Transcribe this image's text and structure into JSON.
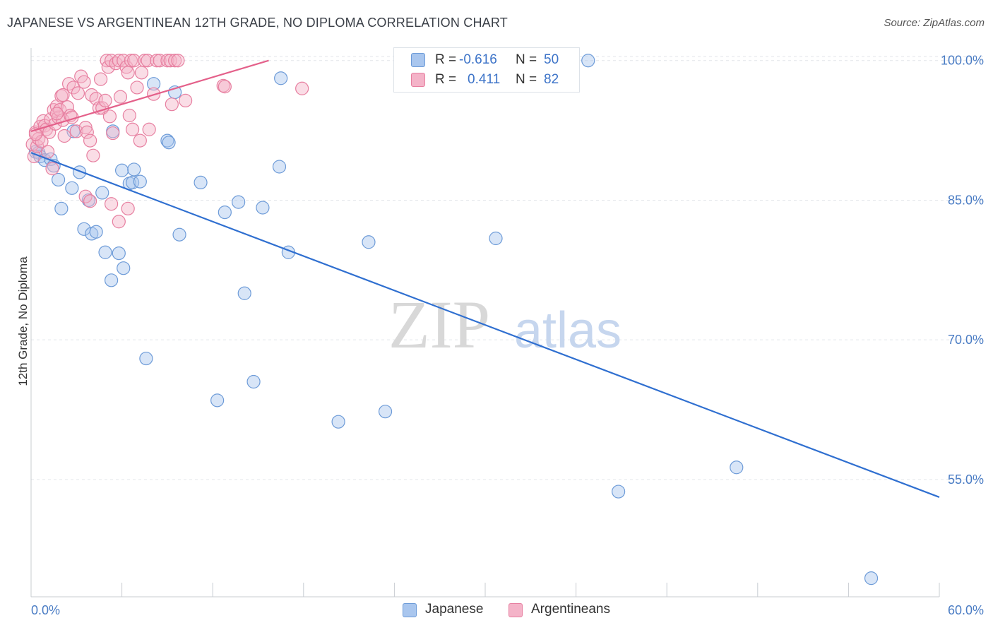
{
  "title": "JAPANESE VS ARGENTINEAN 12TH GRADE, NO DIPLOMA CORRELATION CHART",
  "source": "Source: ZipAtlas.com",
  "watermark": {
    "zip": "ZIP",
    "atlas": "atlas"
  },
  "legend": {
    "rows": [
      {
        "r_label": "R =",
        "r_value": "-0.616",
        "n_label": "N =",
        "n_value": "50",
        "color": "#a9c6ee"
      },
      {
        "r_label": "R =",
        "r_value": " 0.411",
        "n_label": "N =",
        "n_value": "82",
        "color": "#f4b3c8"
      }
    ]
  },
  "bottom_legend": [
    {
      "label": "Japanese",
      "color": "#a9c6ee"
    },
    {
      "label": "Argentineans",
      "color": "#f4b3c8"
    }
  ],
  "chart_data": {
    "type": "scatter",
    "xlabel": "",
    "ylabel": "12th Grade, No Diploma",
    "xlim": [
      0,
      60
    ],
    "ylim": [
      42.4,
      101.8
    ],
    "x_tick_labels": [
      {
        "value": 0,
        "label": "0.0%"
      },
      {
        "value": 60,
        "label": "60.0%"
      }
    ],
    "y_tick_labels": [
      {
        "value": 100,
        "label": "100.0%"
      },
      {
        "value": 85,
        "label": "85.0%"
      },
      {
        "value": 70,
        "label": "70.0%"
      },
      {
        "value": 55,
        "label": "55.0%"
      }
    ],
    "series": [
      {
        "name": "Japanese",
        "color": "#a9c6ee",
        "stroke": "#6d9bd8",
        "trend": {
          "x": [
            0,
            60
          ],
          "y": [
            90.1,
            53.1
          ],
          "color": "#2f6fd0"
        },
        "points": [
          [
            0.3,
            90.2
          ],
          [
            0.5,
            90.1
          ],
          [
            0.6,
            89.7
          ],
          [
            0.9,
            89.3
          ],
          [
            1.3,
            89.4
          ],
          [
            1.5,
            88.7
          ],
          [
            1.8,
            87.2
          ],
          [
            2.0,
            84.1
          ],
          [
            2.7,
            86.3
          ],
          [
            3.2,
            88.0
          ],
          [
            3.5,
            81.9
          ],
          [
            3.8,
            85.0
          ],
          [
            4.0,
            81.4
          ],
          [
            4.3,
            81.6
          ],
          [
            4.7,
            85.8
          ],
          [
            4.9,
            79.4
          ],
          [
            5.3,
            76.4
          ],
          [
            5.4,
            92.4
          ],
          [
            5.8,
            79.3
          ],
          [
            6.0,
            88.2
          ],
          [
            6.1,
            77.7
          ],
          [
            6.5,
            86.8
          ],
          [
            6.7,
            86.9
          ],
          [
            6.8,
            88.3
          ],
          [
            7.2,
            87.0
          ],
          [
            7.6,
            68.0
          ],
          [
            8.1,
            97.5
          ],
          [
            9.0,
            91.4
          ],
          [
            9.1,
            91.2
          ],
          [
            9.5,
            96.6
          ],
          [
            9.8,
            81.3
          ],
          [
            11.2,
            86.9
          ],
          [
            12.3,
            63.5
          ],
          [
            12.8,
            83.7
          ],
          [
            13.7,
            84.8
          ],
          [
            14.1,
            75.0
          ],
          [
            14.7,
            65.5
          ],
          [
            15.3,
            84.2
          ],
          [
            16.4,
            88.6
          ],
          [
            16.5,
            98.1
          ],
          [
            17.0,
            79.4
          ],
          [
            20.3,
            61.2
          ],
          [
            22.3,
            80.5
          ],
          [
            23.4,
            62.3
          ],
          [
            30.7,
            80.9
          ],
          [
            36.8,
            100.0
          ],
          [
            38.8,
            53.7
          ],
          [
            46.6,
            56.3
          ],
          [
            55.5,
            44.4
          ],
          [
            2.8,
            92.4
          ]
        ]
      },
      {
        "name": "Argentineans",
        "color": "#f4b3c8",
        "stroke": "#e77fa0",
        "trend": {
          "x": [
            0,
            15.7
          ],
          "y": [
            92.4,
            100.0
          ],
          "color": "#e4608a"
        },
        "points": [
          [
            0.1,
            91.0
          ],
          [
            0.2,
            89.7
          ],
          [
            0.3,
            92.3
          ],
          [
            0.4,
            90.8
          ],
          [
            0.5,
            91.6
          ],
          [
            0.6,
            92.9
          ],
          [
            0.7,
            91.3
          ],
          [
            0.8,
            93.5
          ],
          [
            0.9,
            93.0
          ],
          [
            1.0,
            92.6
          ],
          [
            1.1,
            90.2
          ],
          [
            1.2,
            92.3
          ],
          [
            1.3,
            93.7
          ],
          [
            1.4,
            88.4
          ],
          [
            1.5,
            94.7
          ],
          [
            1.6,
            93.2
          ],
          [
            1.7,
            95.1
          ],
          [
            1.8,
            93.9
          ],
          [
            1.9,
            94.7
          ],
          [
            2.0,
            96.2
          ],
          [
            2.1,
            93.6
          ],
          [
            2.2,
            91.9
          ],
          [
            2.4,
            95.0
          ],
          [
            2.5,
            97.5
          ],
          [
            2.6,
            94.1
          ],
          [
            2.7,
            93.9
          ],
          [
            2.8,
            97.1
          ],
          [
            3.0,
            92.4
          ],
          [
            3.1,
            96.5
          ],
          [
            3.3,
            98.3
          ],
          [
            3.5,
            97.7
          ],
          [
            3.6,
            92.8
          ],
          [
            3.7,
            92.3
          ],
          [
            3.9,
            91.4
          ],
          [
            4.0,
            96.3
          ],
          [
            4.1,
            89.8
          ],
          [
            4.3,
            95.9
          ],
          [
            4.5,
            94.9
          ],
          [
            4.6,
            98.0
          ],
          [
            4.7,
            94.9
          ],
          [
            4.9,
            95.7
          ],
          [
            5.0,
            100.0
          ],
          [
            5.1,
            99.3
          ],
          [
            5.2,
            94.0
          ],
          [
            5.3,
            100.0
          ],
          [
            5.4,
            92.2
          ],
          [
            5.6,
            99.7
          ],
          [
            5.8,
            100.0
          ],
          [
            5.9,
            96.1
          ],
          [
            6.1,
            100.0
          ],
          [
            6.3,
            99.3
          ],
          [
            6.4,
            98.7
          ],
          [
            6.5,
            94.1
          ],
          [
            6.6,
            100.0
          ],
          [
            6.7,
            92.6
          ],
          [
            6.8,
            100.0
          ],
          [
            7.0,
            97.1
          ],
          [
            7.2,
            91.4
          ],
          [
            7.3,
            98.7
          ],
          [
            7.5,
            100.0
          ],
          [
            7.7,
            100.0
          ],
          [
            7.8,
            92.6
          ],
          [
            8.1,
            96.4
          ],
          [
            8.3,
            100.0
          ],
          [
            8.5,
            100.0
          ],
          [
            9.0,
            100.0
          ],
          [
            9.2,
            100.0
          ],
          [
            9.3,
            95.3
          ],
          [
            9.5,
            100.0
          ],
          [
            9.7,
            100.0
          ],
          [
            10.2,
            95.7
          ],
          [
            12.7,
            97.3
          ],
          [
            12.8,
            97.2
          ],
          [
            17.9,
            97.0
          ],
          [
            3.6,
            85.4
          ],
          [
            3.9,
            84.9
          ],
          [
            5.3,
            84.6
          ],
          [
            5.8,
            82.7
          ],
          [
            6.4,
            84.1
          ],
          [
            0.3,
            92.1
          ],
          [
            2.1,
            96.3
          ],
          [
            1.7,
            94.3
          ]
        ]
      }
    ]
  }
}
